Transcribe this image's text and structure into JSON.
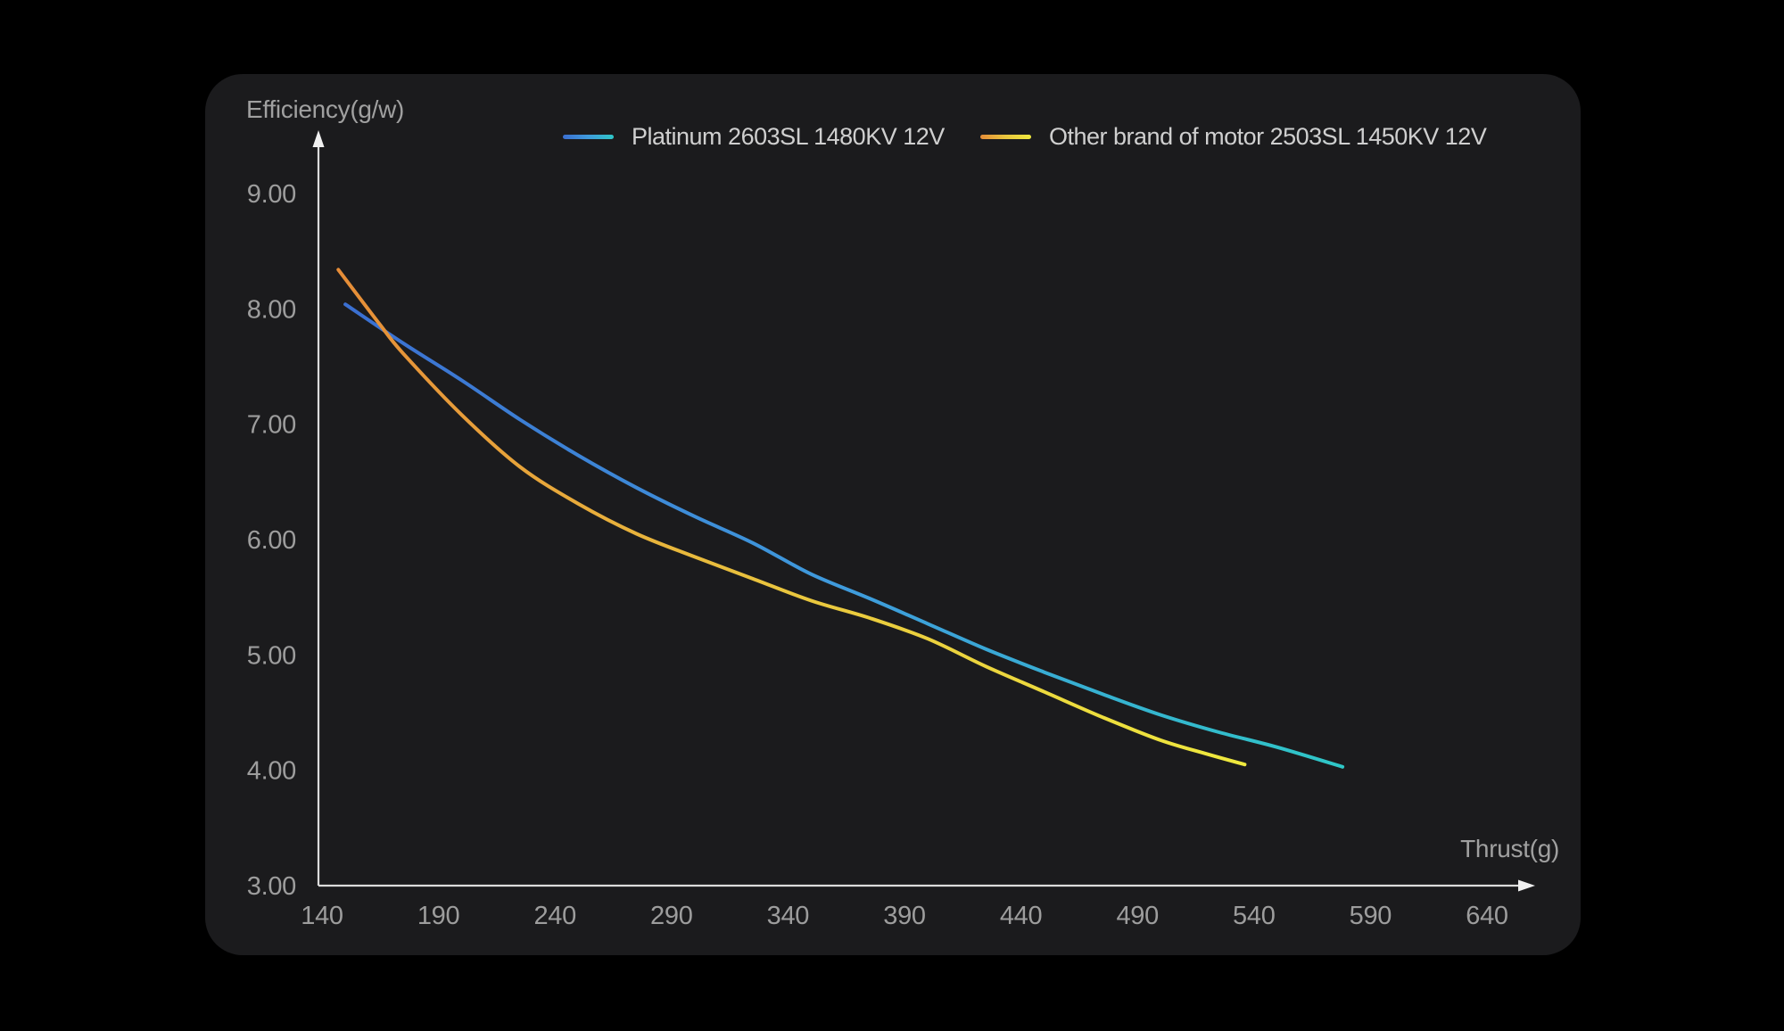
{
  "colors": {
    "background": "#000000",
    "panel": "#1b1b1d",
    "axis": "#dcdcdc",
    "tick_text": "#9d9d9d",
    "axis_title_text": "#a0a0a0",
    "legend_text": "#cfcfcf"
  },
  "chart_data": {
    "type": "line",
    "title": "",
    "xlabel": "Thrust(g)",
    "ylabel": "Efficiency(g/w)",
    "xlim": [
      140,
      640
    ],
    "ylim": [
      3,
      9
    ],
    "x_ticks": [
      "140",
      "190",
      "240",
      "290",
      "340",
      "390",
      "440",
      "490",
      "540",
      "590",
      "640"
    ],
    "y_ticks": [
      "3.00",
      "4.00",
      "5.00",
      "6.00",
      "7.00",
      "8.00",
      "9.00"
    ],
    "grid": false,
    "legend_position": "top-center",
    "series": [
      {
        "name": "Platinum 2603SL 1480KV 12V",
        "gradient": [
          "#3b6fd1",
          "#3f9bdc",
          "#2fc7c7"
        ],
        "points": [
          [
            150,
            8.04
          ],
          [
            175,
            7.7
          ],
          [
            200,
            7.38
          ],
          [
            225,
            7.04
          ],
          [
            250,
            6.73
          ],
          [
            275,
            6.45
          ],
          [
            300,
            6.2
          ],
          [
            325,
            5.97
          ],
          [
            350,
            5.7
          ],
          [
            375,
            5.49
          ],
          [
            400,
            5.27
          ],
          [
            425,
            5.05
          ],
          [
            450,
            4.85
          ],
          [
            475,
            4.66
          ],
          [
            500,
            4.48
          ],
          [
            525,
            4.33
          ],
          [
            550,
            4.2
          ],
          [
            578,
            4.03
          ]
        ]
      },
      {
        "name": "Other brand of motor 2503SL 1450KV 12V",
        "gradient": [
          "#e68d38",
          "#e9c63e",
          "#efe93e"
        ],
        "points": [
          [
            147,
            8.34
          ],
          [
            165,
            7.86
          ],
          [
            175,
            7.61
          ],
          [
            200,
            7.08
          ],
          [
            225,
            6.63
          ],
          [
            250,
            6.31
          ],
          [
            275,
            6.05
          ],
          [
            300,
            5.85
          ],
          [
            325,
            5.66
          ],
          [
            350,
            5.47
          ],
          [
            375,
            5.32
          ],
          [
            400,
            5.14
          ],
          [
            425,
            4.9
          ],
          [
            450,
            4.68
          ],
          [
            475,
            4.46
          ],
          [
            500,
            4.26
          ],
          [
            520,
            4.14
          ],
          [
            536,
            4.05
          ]
        ]
      }
    ]
  }
}
